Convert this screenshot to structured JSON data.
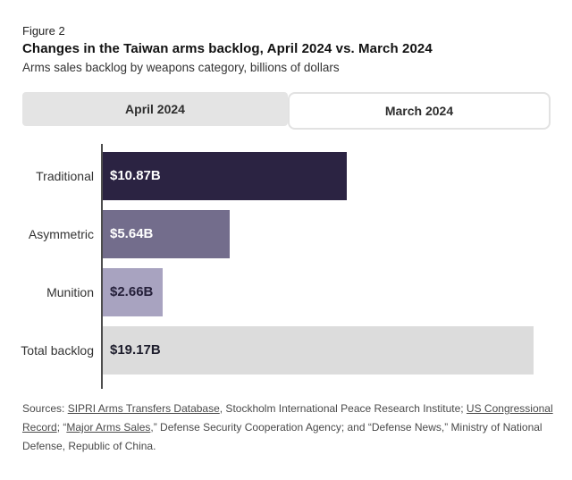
{
  "figure_label": "Figure 2",
  "title": "Changes in the Taiwan arms backlog, April 2024 vs. March 2024",
  "subtitle": "Arms sales backlog by weapons category, billions of dollars",
  "tabs": {
    "april": {
      "label": "April 2024",
      "active": true
    },
    "march": {
      "label": "March 2024",
      "active": false
    }
  },
  "chart_data": {
    "type": "bar",
    "orientation": "horizontal",
    "title": "Changes in the Taiwan arms backlog, April 2024 vs. March 2024",
    "subtitle": "Arms sales backlog by weapons category, billions of dollars",
    "unit": "billions of US dollars",
    "selected_period": "April 2024",
    "categories": [
      "Traditional",
      "Asymmetric",
      "Munition",
      "Total backlog"
    ],
    "values": [
      10.87,
      5.64,
      2.66,
      19.17
    ],
    "value_labels": [
      "$10.87B",
      "$5.64B",
      "$2.66B",
      "$19.17B"
    ],
    "bar_colors": [
      "#2b2342",
      "#736d8c",
      "#a8a3c0",
      "#dcdcdc"
    ],
    "value_label_colors": [
      "#ffffff",
      "#ffffff",
      "#25203a",
      "#1e1e2d"
    ],
    "xlim": [
      0,
      19.17
    ],
    "grid": false,
    "legend": false
  },
  "sources": {
    "s1": "Sources: ",
    "s2": "SIPRI Arms Transfers Database",
    "s3": ", Stockholm International Peace Research Institute; ",
    "s4": "US Congressional Record",
    "s5": "; “",
    "s6": "Major Arms Sales",
    "s7": ",” Defense Security Cooperation Agency; and “Defense News,” Ministry of National Defense, Republic of China."
  }
}
